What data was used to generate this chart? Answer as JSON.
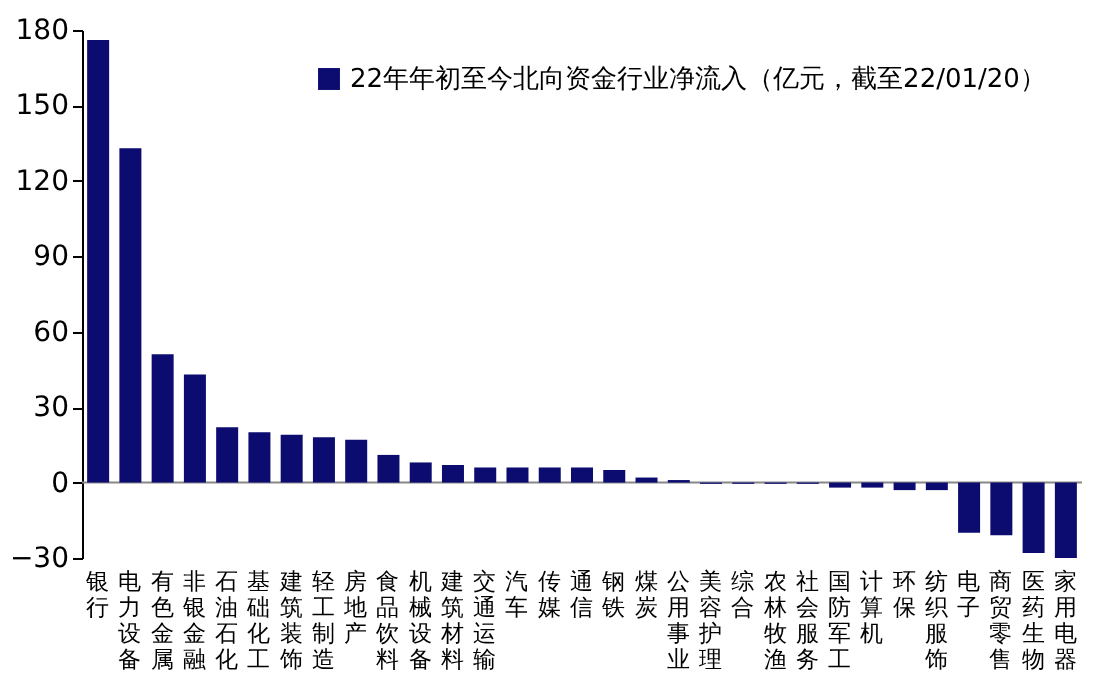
{
  "chart_data": {
    "type": "bar",
    "categories": [
      "银行",
      "电力设备",
      "有色金属",
      "非银金融",
      "石油石化",
      "基础化工",
      "建筑装饰",
      "轻工制造",
      "房地产",
      "食品饮料",
      "机械设备",
      "建筑材料",
      "交通运输",
      "汽车",
      "传媒",
      "通信",
      "钢铁",
      "煤炭",
      "公用事业",
      "美容护理",
      "综合",
      "农林牧渔",
      "社会服务",
      "国防军工",
      "计算机",
      "环保",
      "纺织服饰",
      "电子",
      "商贸零售",
      "医药生物",
      "家用电器"
    ],
    "series": [
      {
        "name": "22年年初至今北向资金行业净流入（亿元，截至22/01/20）",
        "color": "#0b0b70",
        "values": [
          176,
          133,
          51,
          43,
          22,
          20,
          19,
          18,
          17,
          11,
          8,
          7,
          6,
          6,
          6,
          6,
          5,
          2,
          1,
          -0.5,
          -0.5,
          -0.5,
          -0.5,
          -2,
          -2,
          -3,
          -3,
          -20,
          -21,
          -28,
          -30
        ]
      }
    ],
    "ylim": [
      -30,
      180
    ],
    "yticks": [
      -30,
      0,
      30,
      60,
      90,
      120,
      150,
      180
    ],
    "grid": false,
    "ref_lines": [
      {
        "axis": "y",
        "value": 0,
        "color": "#888888"
      }
    ],
    "legend": "top right"
  }
}
